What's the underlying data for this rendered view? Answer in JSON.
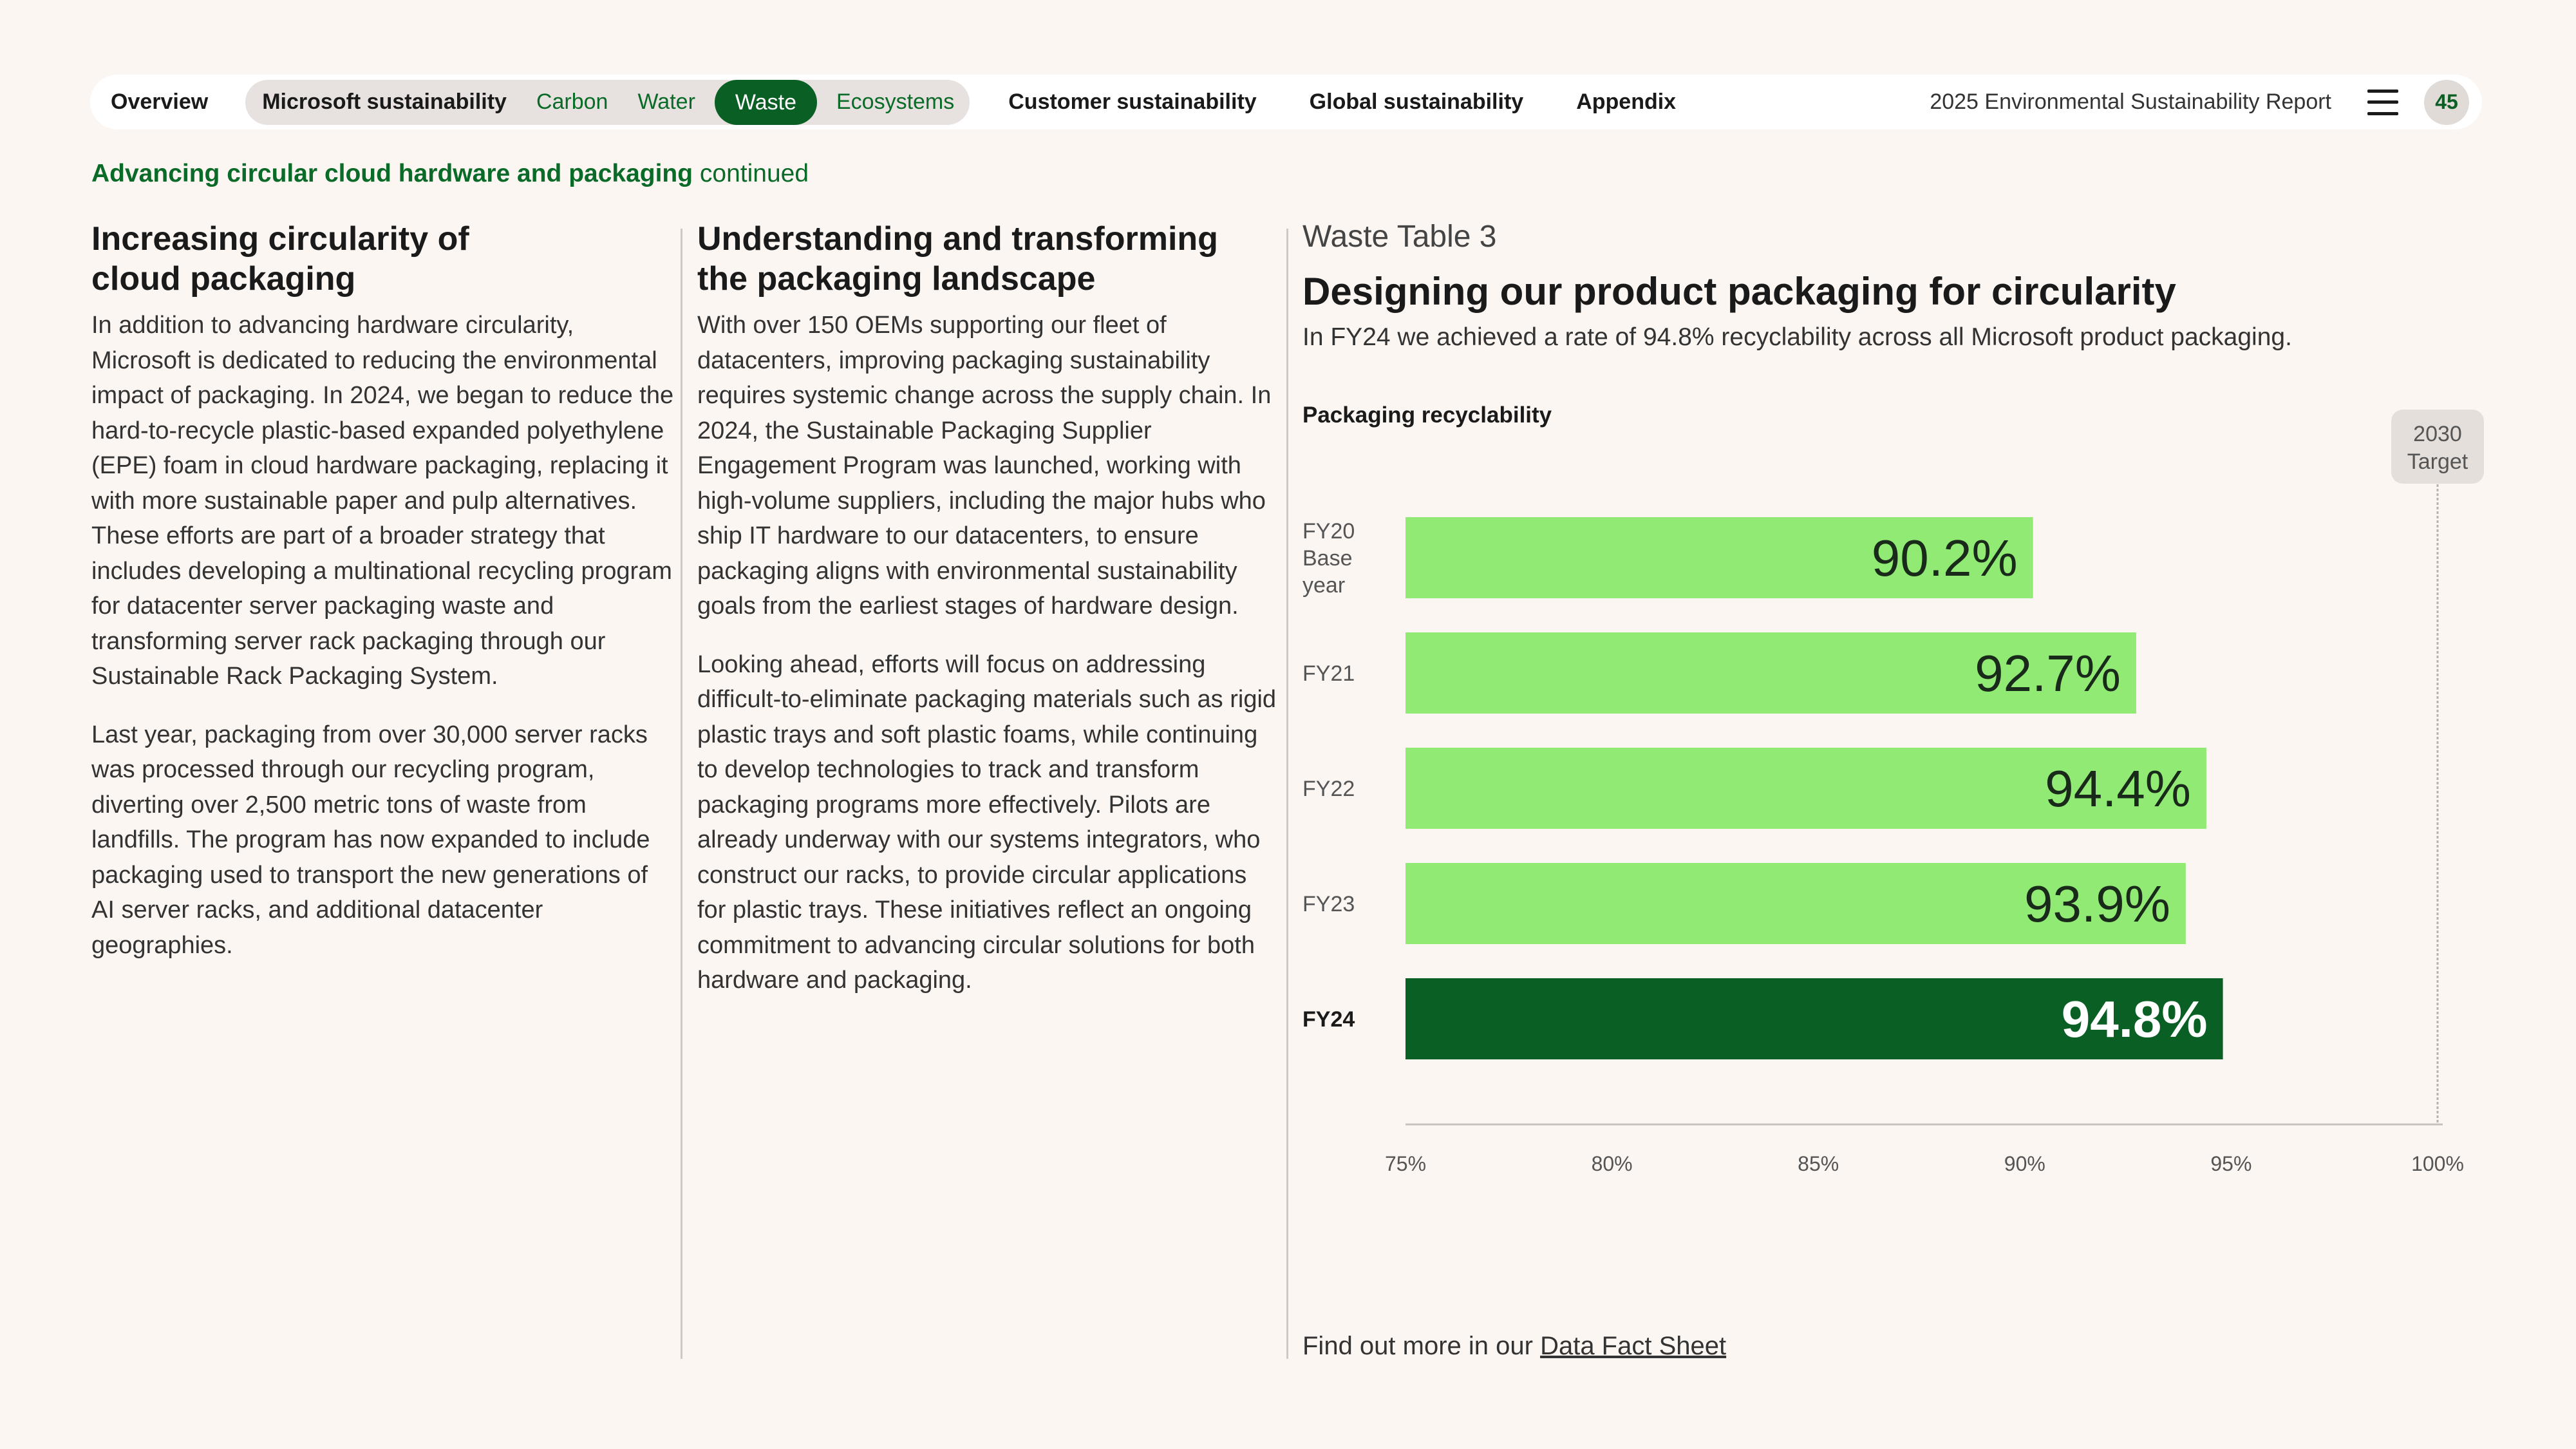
{
  "nav": {
    "overview": "Overview",
    "microsoft_sustainability": "Microsoft sustainability",
    "sub_items": [
      "Carbon",
      "Water",
      "Waste",
      "Ecosystems"
    ],
    "active_item": "Waste",
    "customer_sustainability": "Customer sustainability",
    "global_sustainability": "Global sustainability",
    "appendix": "Appendix",
    "report_title": "2025 Environmental Sustainability Report",
    "menu_icon": "hamburger-menu-icon",
    "page_number": "45"
  },
  "section": {
    "title": "Advancing circular cloud hardware and packaging",
    "suffix": "continued"
  },
  "col1": {
    "heading_line1": "Increasing circularity of",
    "heading_line2": "cloud packaging",
    "p1": "In addition to advancing hardware circularity, Microsoft is dedicated to reducing the environmental impact of packaging. In 2024, we began to reduce the hard-to-recycle plastic-based expanded polyethylene (EPE) foam in cloud hardware packaging, replacing it with more sustainable paper and pulp alternatives. These efforts are part of a broader strategy that includes developing a multinational recycling program for datacenter server packaging waste and transforming server rack packaging through our Sustainable Rack Packaging System.",
    "p2": "Last year, packaging from over 30,000 server racks was processed through our recycling program, diverting over 2,500 metric tons of waste from landfills. The program has now expanded to include packaging used to transport the new generations of AI server racks, and additional datacenter geographies."
  },
  "col2": {
    "heading_line1": "Understanding and transforming",
    "heading_line2": "the packaging landscape",
    "p1": "With over 150 OEMs supporting our fleet of datacenters, improving packaging sustainability requires systemic change across the supply chain. In 2024, the Sustainable Packaging Supplier Engagement Program was launched, working with high-volume suppliers, including the major hubs who ship IT hardware to our datacenters, to ensure packaging aligns with environmental sustainability goals from the earliest stages of hardware design.",
    "p2": "Looking ahead, efforts will focus on addressing difficult-to-eliminate packaging materials such as rigid plastic trays and soft plastic foams, while continuing to develop technologies to track and transform packaging programs more effectively. Pilots are already underway with our systems integrators, who construct our racks, to provide circular applications for plastic trays. These initiatives reflect an ongoing commitment to advancing circular solutions for both hardware and packaging."
  },
  "chart_panel": {
    "kicker": "Waste Table 3",
    "title": "Designing our product packaging for circularity",
    "subtitle": "In FY24 we achieved a rate of 94.8% recyclability across all Microsoft product packaging.",
    "chart_label": "Packaging recyclability",
    "footer_text": "Find out more in our",
    "footer_link": "Data Fact Sheet"
  },
  "chart_data": {
    "type": "bar",
    "orientation": "horizontal",
    "title": "Packaging recyclability",
    "categories": [
      [
        "FY20",
        "Base",
        "year"
      ],
      [
        "FY21"
      ],
      [
        "FY22"
      ],
      [
        "FY23"
      ],
      [
        "FY24"
      ]
    ],
    "values": [
      90.2,
      92.7,
      94.4,
      93.9,
      94.8
    ],
    "value_labels": [
      "90.2%",
      "92.7%",
      "94.4%",
      "93.9%",
      "94.8%"
    ],
    "highlight_index": 4,
    "xlim": [
      75,
      100
    ],
    "ticks": [
      75,
      80,
      85,
      90,
      95,
      100
    ],
    "tick_labels": [
      "75%",
      "80%",
      "85%",
      "90%",
      "95%",
      "100%"
    ],
    "target": {
      "value": 100,
      "label_line1": "2030",
      "label_line2": "Target"
    },
    "colors": {
      "bar": "#90ea73",
      "highlight": "#0a5f24",
      "axis": "#c8c2be"
    }
  }
}
